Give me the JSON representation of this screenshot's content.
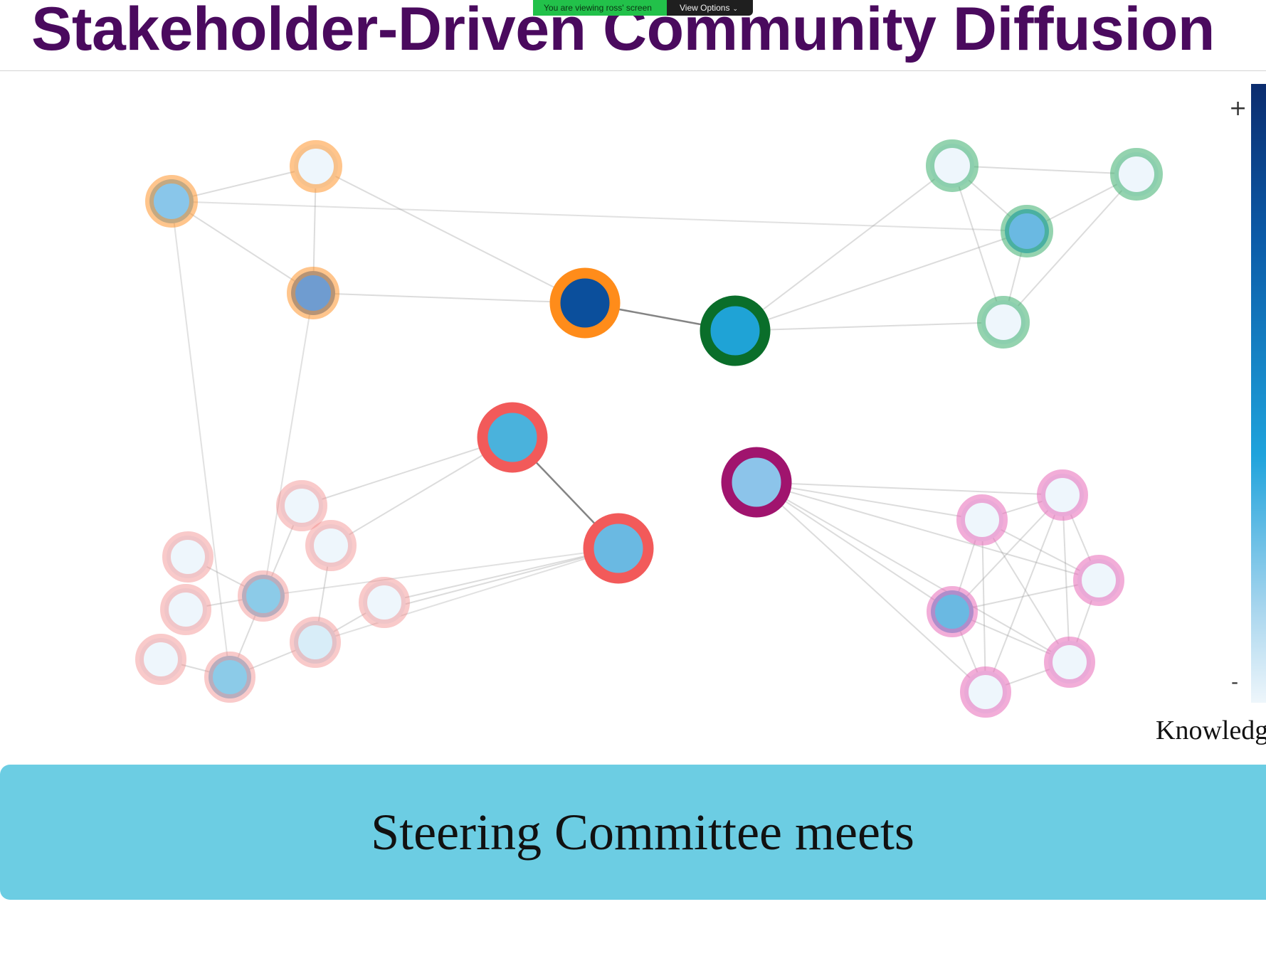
{
  "screen_share": {
    "status": "You are viewing ross' screen",
    "view_options_label": "View Options",
    "view_options_icon": "chevron-down-icon"
  },
  "slide": {
    "title": "Stakeholder-Driven Community Diffusion",
    "caption": "Steering Committee meets"
  },
  "legend": {
    "title": "Knowledge",
    "high_symbol": "+",
    "low_symbol": "-",
    "scale_colors": [
      "#0b2c6e",
      "#0b5ba8",
      "#1fa3dc",
      "#a9d6ee",
      "#eef6fb"
    ]
  },
  "network": {
    "group_colors": {
      "orange": "#ff8c1a",
      "green": "#0a6e2a",
      "coral": "#f25a5a",
      "magenta": "#a0146e"
    },
    "fill_colors": {
      "dark": "#0b4f9c",
      "mid": "#1fa3d6",
      "light": "#6ab9e2",
      "pale": "#e6f2fb"
    }
  }
}
